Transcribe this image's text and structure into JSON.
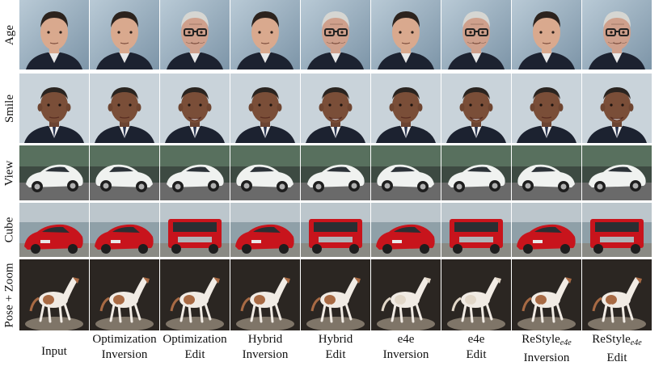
{
  "rows": [
    {
      "key": "age",
      "label": "Age"
    },
    {
      "key": "smile",
      "label": "Smile"
    },
    {
      "key": "view",
      "label": "View"
    },
    {
      "key": "cube",
      "label": "Cube"
    },
    {
      "key": "pose",
      "label": "Pose + Zoom"
    }
  ],
  "columns": [
    {
      "line1": "Input",
      "line2": "",
      "sub": ""
    },
    {
      "line1": "Optimization",
      "line2": "Inversion",
      "sub": ""
    },
    {
      "line1": "Optimization",
      "line2": "Edit",
      "sub": ""
    },
    {
      "line1": "Hybrid",
      "line2": "Inversion",
      "sub": ""
    },
    {
      "line1": "Hybrid",
      "line2": "Edit",
      "sub": ""
    },
    {
      "line1": "e4e",
      "line2": "Inversion",
      "sub": ""
    },
    {
      "line1": "e4e",
      "line2": "Edit",
      "sub": ""
    },
    {
      "line1": "ReStyle",
      "line2": "Inversion",
      "sub": "e4e"
    },
    {
      "line1": "ReStyle",
      "line2": "Edit",
      "sub": "e4e"
    }
  ],
  "palette": {
    "face_bg": "#9fb4c4",
    "suit": "#1c2230",
    "skin": "#d9a98e",
    "skin_old": "#cfa08c",
    "hair_dark": "#2c231e",
    "hair_gray": "#d6d6d2",
    "obama_bg": "#c9d3da",
    "car_white": "#f0f2f0",
    "car_red": "#c8141c",
    "road": "#6a6a6a",
    "horse_bg": "#2b2622",
    "horse_coat": "#f1ebe4",
    "horse_patch": "#a86a44"
  },
  "edits": {
    "age": [
      false,
      false,
      true,
      false,
      true,
      false,
      true,
      false,
      true
    ],
    "smile": [
      false,
      false,
      true,
      false,
      true,
      false,
      true,
      false,
      true
    ],
    "cube": [
      false,
      false,
      true,
      false,
      true,
      false,
      true,
      false,
      true
    ]
  }
}
